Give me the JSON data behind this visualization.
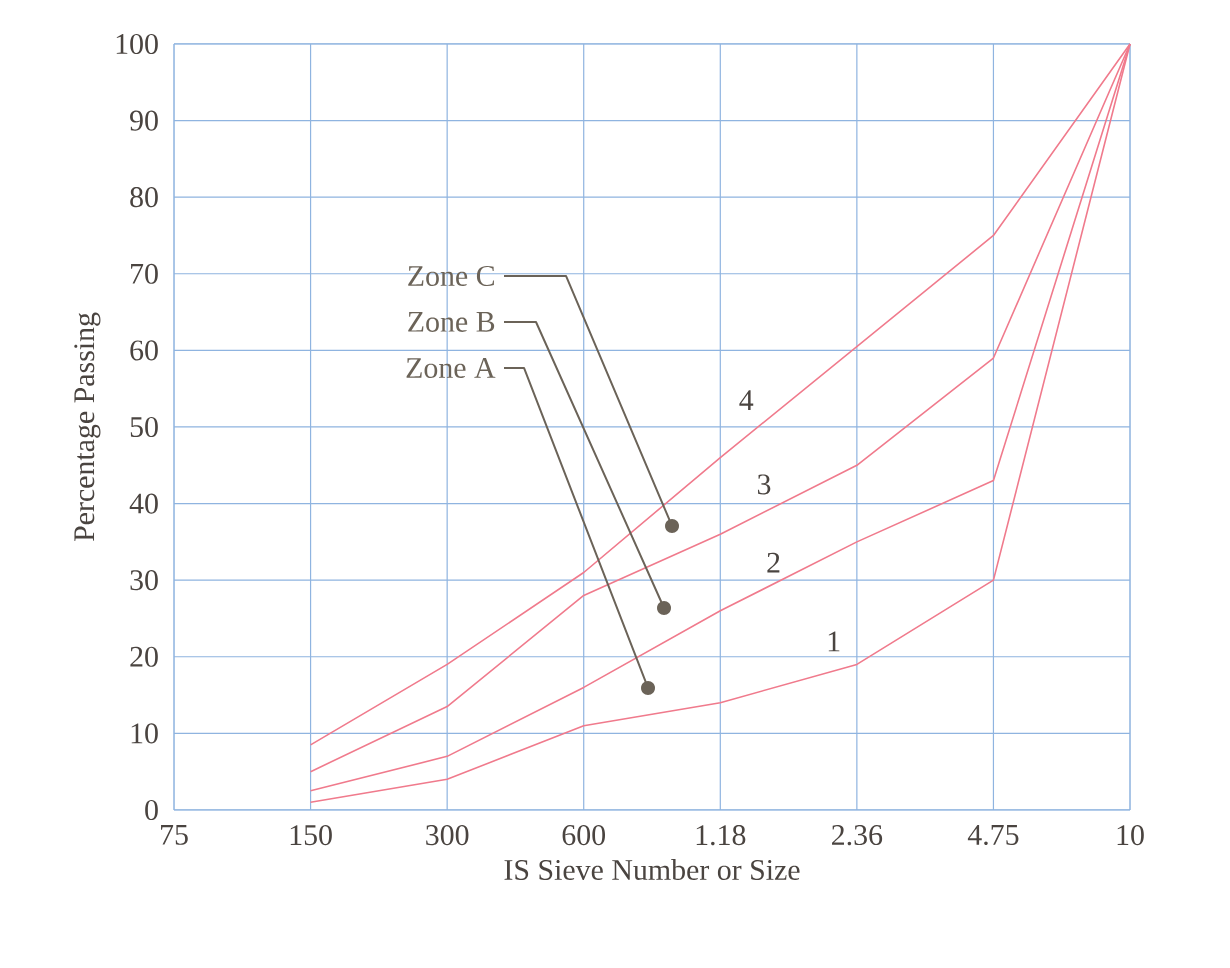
{
  "chart_data": {
    "type": "line",
    "xlabel": "IS Sieve Number or Size",
    "ylabel": "Percentage Passing",
    "categories": [
      "75",
      "150",
      "300",
      "600",
      "1.18",
      "2.36",
      "4.75",
      "10"
    ],
    "series": [
      {
        "name": "1",
        "color": "#f07a8c",
        "values": [
          null,
          1,
          4,
          11,
          14,
          19,
          30,
          100
        ]
      },
      {
        "name": "2",
        "color": "#f07a8c",
        "values": [
          null,
          2.5,
          7,
          16,
          26,
          35,
          43,
          100
        ]
      },
      {
        "name": "3",
        "color": "#f07a8c",
        "values": [
          null,
          5,
          13.5,
          28,
          36,
          45,
          59,
          100
        ]
      },
      {
        "name": "4",
        "color": "#f07a8c",
        "values": [
          null,
          8.5,
          19,
          31,
          46,
          60.5,
          75,
          100
        ]
      }
    ],
    "ylim": [
      0,
      100
    ],
    "yticks": [
      0,
      10,
      20,
      30,
      40,
      50,
      60,
      70,
      80,
      90,
      100
    ],
    "grid": true,
    "legend": false,
    "marker": "none",
    "line_style": "solid",
    "annotations": [
      "Zone C",
      "Zone B",
      "Zone A"
    ]
  }
}
